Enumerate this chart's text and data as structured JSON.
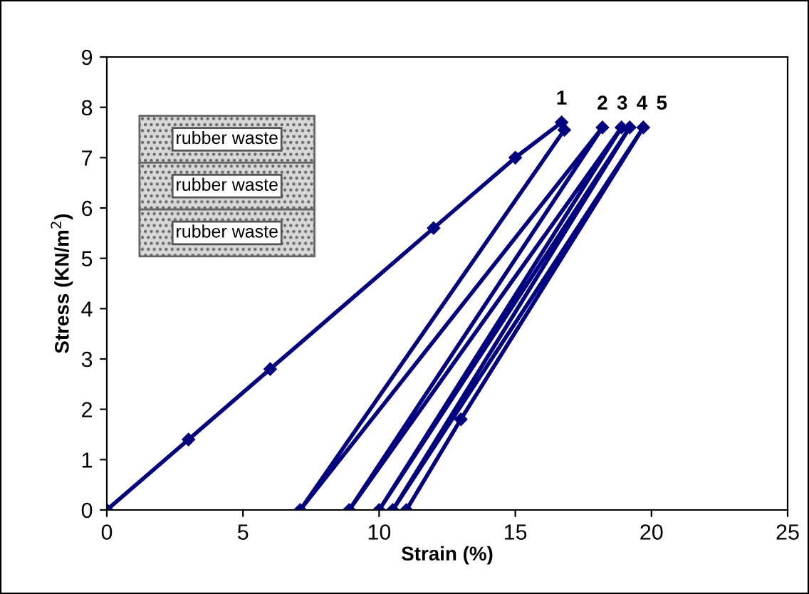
{
  "chart_data": {
    "type": "line",
    "xlabel": "Strain (%)",
    "ylabel": "Stress (KN/m$^{2}$)",
    "x": [
      0,
      3,
      6,
      12,
      15,
      16.7,
      16.8,
      7.1,
      18.2,
      8.9,
      18.9,
      10,
      19.2,
      10.5,
      19.7,
      13,
      11
    ],
    "series": [
      {
        "color": "#000080",
        "values": [
          0,
          1.4,
          2.8,
          5.6,
          7.0,
          7.7,
          7.55,
          0,
          7.6,
          0,
          7.6,
          0,
          7.6,
          0,
          7.6,
          1.8,
          0
        ]
      }
    ],
    "xlim": [
      0,
      25
    ],
    "ylim": [
      0,
      9
    ],
    "xticks": [
      0,
      5,
      10,
      15,
      20,
      25
    ],
    "yticks": [
      0,
      1,
      2,
      3,
      4,
      5,
      6,
      7,
      8,
      9
    ],
    "marker": "diamond",
    "line_style": "solid",
    "grid": false,
    "legend": false,
    "annotations": [
      {
        "text": "1",
        "x": 16.7,
        "y": 7.7
      },
      {
        "text": "2",
        "x": 18.2,
        "y": 7.6
      },
      {
        "text": "3",
        "x": 18.9,
        "y": 7.6
      },
      {
        "text": "4",
        "x": 19.2,
        "y": 7.6
      },
      {
        "text": "5",
        "x": 19.7,
        "y": 7.6
      },
      "rubber waste",
      "rubber waste",
      "rubber waste"
    ]
  }
}
